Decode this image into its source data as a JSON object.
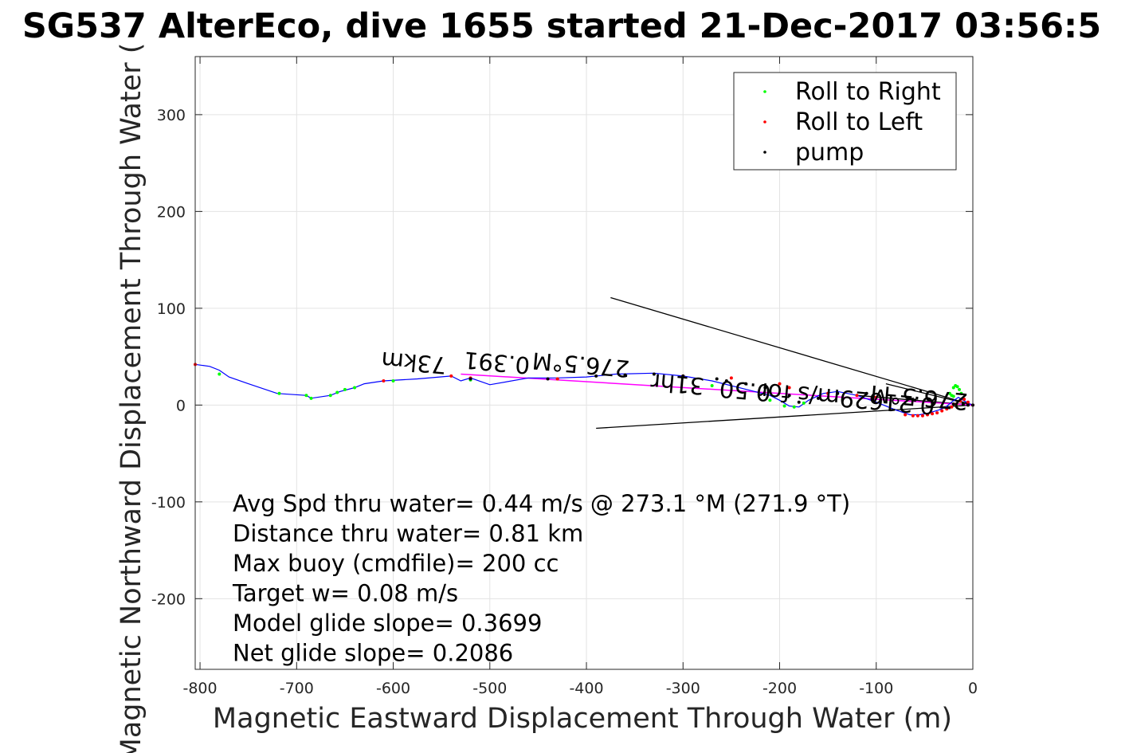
{
  "chart_data": {
    "type": "line",
    "title": "SG537 AlterEco, dive 1655 started 21-Dec-2017 03:56:5",
    "xlabel": "Magnetic Eastward Displacement Through Water (m)",
    "ylabel": "Magnetic Northward Displacement Through Water (",
    "xlim": [
      -805,
      0
    ],
    "ylim": [
      -273,
      360
    ],
    "xticks": [
      -800,
      -700,
      -600,
      -500,
      -400,
      -300,
      -200,
      -100,
      0
    ],
    "yticks": [
      -200,
      -100,
      0,
      100,
      200,
      300
    ],
    "grid": true,
    "legend_position": "top-right",
    "legend": [
      {
        "label": "Roll to Right",
        "color": "#00ff00"
      },
      {
        "label": "Roll to Left",
        "color": "#ff0000"
      },
      {
        "label": "pump",
        "color": "#000000"
      }
    ],
    "track": {
      "color": "#0000ff",
      "x": [
        -805,
        -790,
        -780,
        -770,
        -750,
        -720,
        -690,
        -685,
        -665,
        -655,
        -640,
        -630,
        -610,
        -575,
        -540,
        -530,
        -520,
        -500,
        -460,
        -430,
        -400,
        -370,
        -330,
        -300,
        -270,
        -230,
        -210,
        -200,
        -190,
        -180,
        -170,
        -155,
        -140,
        -120,
        -100,
        -80,
        -65,
        -55,
        -45,
        -35,
        -28,
        -22,
        -15,
        -10,
        -5,
        0
      ],
      "y": [
        42,
        40,
        36,
        29,
        22,
        12,
        10,
        7,
        10,
        14,
        18,
        22,
        25,
        27,
        30,
        25,
        28,
        21,
        28,
        28,
        29,
        32,
        33,
        30,
        25,
        15,
        10,
        5,
        -1,
        -2,
        5,
        12,
        14,
        10,
        3,
        -5,
        -10,
        -10,
        -8,
        -5,
        -2,
        3,
        8,
        5,
        2,
        0
      ]
    },
    "roll_right_points": {
      "x": [
        -780,
        -718,
        -690,
        -685,
        -665,
        -658,
        -650,
        -640,
        -600,
        -520,
        -430,
        -270,
        -210,
        -195,
        -185,
        -175,
        -20,
        -18,
        -16,
        -14,
        -12,
        -24,
        -22,
        -20
      ],
      "y": [
        32,
        12,
        10,
        7,
        10,
        13,
        16,
        18,
        25,
        26,
        27,
        20,
        5,
        -1,
        -2,
        2,
        18,
        20,
        19,
        16,
        12,
        12,
        10,
        9
      ]
    },
    "roll_left_points": {
      "x": [
        -805,
        -610,
        -540,
        -520,
        -430,
        -300,
        -250,
        -200,
        -190,
        -150,
        -120,
        -100,
        -70,
        -62,
        -57,
        -52,
        -47,
        -42,
        -37,
        -32,
        -27,
        -22,
        -17,
        -13,
        -9,
        -5,
        0
      ],
      "y": [
        42,
        25,
        30,
        28,
        27,
        30,
        28,
        22,
        18,
        12,
        10,
        8,
        -10,
        -11,
        -11,
        -11,
        -10,
        -9,
        -8,
        -6,
        -4,
        -2,
        1,
        4,
        6,
        3,
        0
      ]
    },
    "pump_points": {
      "x": [
        -520,
        -440,
        -390,
        -360,
        -330,
        -300,
        -265,
        -255,
        -235,
        -215,
        -190,
        -180,
        -160,
        -140,
        -110,
        -60,
        -40,
        -20,
        -10,
        -5,
        0
      ],
      "y": [
        27,
        27,
        30,
        31,
        32,
        30,
        27,
        25,
        22,
        18,
        10,
        3,
        7,
        12,
        12,
        5,
        2,
        1,
        1,
        0,
        0
      ]
    },
    "magenta_segment": {
      "x": [
        -530,
        0
      ],
      "y": [
        32,
        0
      ]
    },
    "vector_lines": [
      {
        "x": [
          -375,
          0
        ],
        "y": [
          111,
          0
        ]
      },
      {
        "x": [
          -390,
          0
        ],
        "y": [
          -24,
          0
        ]
      },
      {
        "x": [
          -90,
          0
        ],
        "y": [
          22,
          0
        ]
      },
      {
        "x": [
          -120,
          0
        ],
        "y": [
          10,
          0
        ]
      }
    ],
    "flipped_labels": [
      {
        "text": "276.5°M",
        "x": -405,
        "y": 50
      },
      {
        "text": "0.391",
        "x": -492,
        "y": 52
      },
      {
        "text": "73km",
        "x": -578,
        "y": 52
      },
      {
        "text": "0.21629m/s for",
        "x": -130,
        "y": 15
      },
      {
        "text": "0.50",
        "x": -235,
        "y": 23
      },
      {
        "text": "31hr",
        "x": -305,
        "y": 30
      },
      {
        "text": "276.5°M",
        "x": -55,
        "y": 16
      }
    ],
    "stats": [
      "Avg Spd thru water=  0.44 m/s @ 273.1 °M (271.9 °T)",
      "Distance thru water=  0.81 km",
      "Max buoy (cmdfile)= 200 cc",
      "Target w= 0.08 m/s",
      "Model glide slope= 0.3699",
      "Net glide slope= 0.2086"
    ]
  }
}
